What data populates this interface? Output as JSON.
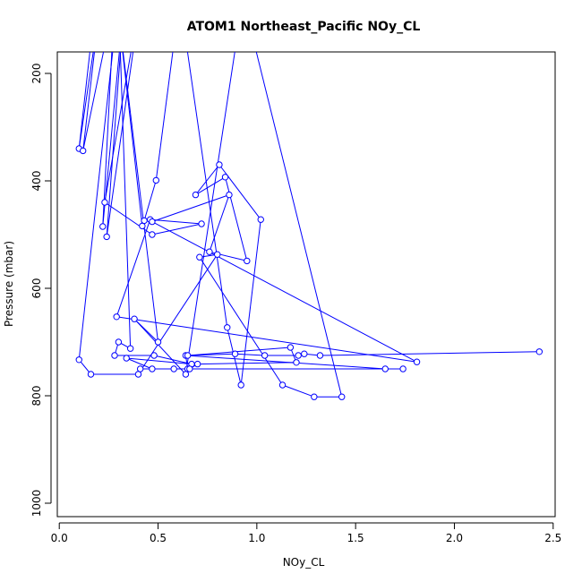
{
  "chart_data": {
    "type": "line",
    "title": "ATOM1 Northeast_Pacific NOy_CL",
    "xlabel": "NOy_CL",
    "ylabel": "Pressure (mbar)",
    "xlim": [
      -0.01,
      2.51
    ],
    "ylim": [
      160,
      1025
    ],
    "y_reversed": true,
    "x_ticks": [
      0.0,
      0.5,
      1.0,
      1.5,
      2.0,
      2.5
    ],
    "x_tick_labels": [
      "0.0",
      "0.5",
      "1.0",
      "1.5",
      "2.0",
      "2.5"
    ],
    "y_ticks": [
      200,
      400,
      600,
      800,
      1000
    ],
    "y_tick_labels": [
      "200",
      "400",
      "600",
      "800",
      "1000"
    ],
    "series_color": "#0000ff",
    "grid": false,
    "legend": "none",
    "x": [
      0.19,
      0.1,
      0.2,
      0.12,
      0.28,
      0.22,
      0.33,
      0.24,
      0.42,
      0.23,
      0.47,
      0.72,
      0.46,
      0.29,
      1.81,
      0.47,
      0.86,
      0.76,
      0.95,
      0.84,
      0.69,
      0.81,
      1.02,
      0.92,
      0.85,
      0.61,
      0.49,
      0.43,
      0.42,
      0.29,
      0.5,
      0.38,
      0.64,
      0.93,
      1.43,
      1.29,
      1.13,
      0.71,
      0.8,
      0.4,
      0.16,
      0.1,
      0.3,
      0.36,
      0.3,
      0.28,
      0.48,
      0.67,
      0.34,
      0.47,
      0.41,
      0.65,
      0.64,
      1.65,
      1.74,
      0.58,
      0.66,
      0.7,
      1.2,
      1.17,
      0.65,
      0.89,
      1.04,
      1.21,
      1.24,
      1.32,
      2.43
    ],
    "y": [
      45,
      340,
      90,
      344,
      60,
      485,
      60,
      504,
      40,
      440,
      500,
      480,
      472,
      653,
      737,
      476,
      426,
      532,
      549,
      393,
      426,
      370,
      472,
      780,
      673,
      60,
      399,
      474,
      484,
      60,
      700,
      657,
      760,
      60,
      802,
      802,
      780,
      542,
      537,
      760,
      760,
      733,
      60,
      712,
      700,
      725,
      725,
      741,
      730,
      750,
      750,
      750,
      725,
      750,
      750,
      750,
      750,
      741,
      738,
      710,
      725,
      722,
      725,
      725,
      722,
      725,
      718
    ]
  }
}
